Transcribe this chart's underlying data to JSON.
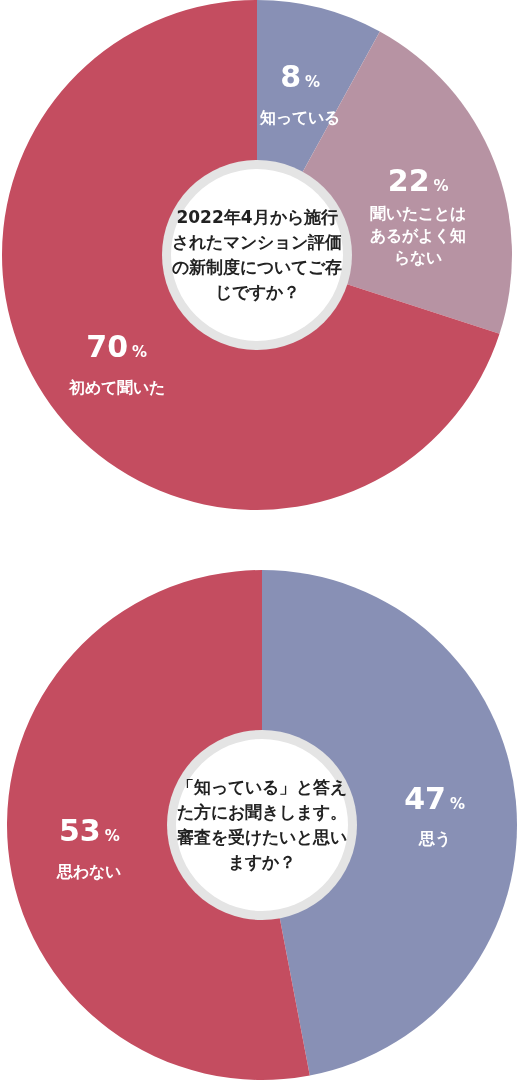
{
  "chart_data": [
    {
      "type": "donut",
      "title": "2022年4月から施行されたマンション評価の新制度についてご存じですか？",
      "categories": [
        "知っている",
        "聞いたことはあるがよく知らない",
        "初めて聞いた"
      ],
      "values": [
        8,
        22,
        70
      ],
      "colors": [
        "#8890b5",
        "#b793a3",
        "#c44d60"
      ],
      "value_labels": [
        "8%",
        "22%",
        "70%"
      ]
    },
    {
      "type": "donut",
      "title": "「知っている」と答えた方にお聞きします。審査を受けたいと思いますか？",
      "categories": [
        "思う",
        "思わない"
      ],
      "values": [
        47,
        53
      ],
      "colors": [
        "#8890b5",
        "#c44d60"
      ],
      "value_labels": [
        "47%",
        "53%"
      ]
    }
  ]
}
